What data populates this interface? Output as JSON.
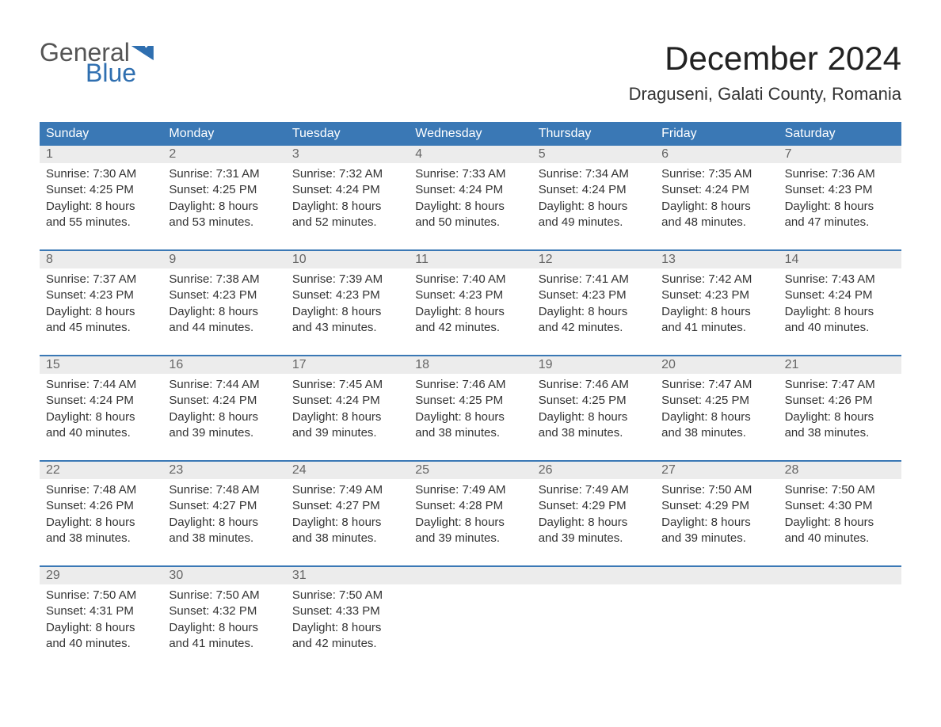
{
  "logo": {
    "top": "General",
    "bottom": "Blue"
  },
  "title": "December 2024",
  "location": "Draguseni, Galati County, Romania",
  "colors": {
    "header_bg": "#3a78b5",
    "header_text": "#ffffff",
    "daynum_bg": "#ececec",
    "daynum_text": "#666666",
    "body_text": "#333333",
    "week_border": "#3a78b5",
    "logo_gray": "#555555",
    "logo_blue": "#2f6fb0"
  },
  "dow": [
    "Sunday",
    "Monday",
    "Tuesday",
    "Wednesday",
    "Thursday",
    "Friday",
    "Saturday"
  ],
  "weeks": [
    [
      {
        "n": "1",
        "sr": "Sunrise: 7:30 AM",
        "ss": "Sunset: 4:25 PM",
        "d1": "Daylight: 8 hours",
        "d2": "and 55 minutes."
      },
      {
        "n": "2",
        "sr": "Sunrise: 7:31 AM",
        "ss": "Sunset: 4:25 PM",
        "d1": "Daylight: 8 hours",
        "d2": "and 53 minutes."
      },
      {
        "n": "3",
        "sr": "Sunrise: 7:32 AM",
        "ss": "Sunset: 4:24 PM",
        "d1": "Daylight: 8 hours",
        "d2": "and 52 minutes."
      },
      {
        "n": "4",
        "sr": "Sunrise: 7:33 AM",
        "ss": "Sunset: 4:24 PM",
        "d1": "Daylight: 8 hours",
        "d2": "and 50 minutes."
      },
      {
        "n": "5",
        "sr": "Sunrise: 7:34 AM",
        "ss": "Sunset: 4:24 PM",
        "d1": "Daylight: 8 hours",
        "d2": "and 49 minutes."
      },
      {
        "n": "6",
        "sr": "Sunrise: 7:35 AM",
        "ss": "Sunset: 4:24 PM",
        "d1": "Daylight: 8 hours",
        "d2": "and 48 minutes."
      },
      {
        "n": "7",
        "sr": "Sunrise: 7:36 AM",
        "ss": "Sunset: 4:23 PM",
        "d1": "Daylight: 8 hours",
        "d2": "and 47 minutes."
      }
    ],
    [
      {
        "n": "8",
        "sr": "Sunrise: 7:37 AM",
        "ss": "Sunset: 4:23 PM",
        "d1": "Daylight: 8 hours",
        "d2": "and 45 minutes."
      },
      {
        "n": "9",
        "sr": "Sunrise: 7:38 AM",
        "ss": "Sunset: 4:23 PM",
        "d1": "Daylight: 8 hours",
        "d2": "and 44 minutes."
      },
      {
        "n": "10",
        "sr": "Sunrise: 7:39 AM",
        "ss": "Sunset: 4:23 PM",
        "d1": "Daylight: 8 hours",
        "d2": "and 43 minutes."
      },
      {
        "n": "11",
        "sr": "Sunrise: 7:40 AM",
        "ss": "Sunset: 4:23 PM",
        "d1": "Daylight: 8 hours",
        "d2": "and 42 minutes."
      },
      {
        "n": "12",
        "sr": "Sunrise: 7:41 AM",
        "ss": "Sunset: 4:23 PM",
        "d1": "Daylight: 8 hours",
        "d2": "and 42 minutes."
      },
      {
        "n": "13",
        "sr": "Sunrise: 7:42 AM",
        "ss": "Sunset: 4:23 PM",
        "d1": "Daylight: 8 hours",
        "d2": "and 41 minutes."
      },
      {
        "n": "14",
        "sr": "Sunrise: 7:43 AM",
        "ss": "Sunset: 4:24 PM",
        "d1": "Daylight: 8 hours",
        "d2": "and 40 minutes."
      }
    ],
    [
      {
        "n": "15",
        "sr": "Sunrise: 7:44 AM",
        "ss": "Sunset: 4:24 PM",
        "d1": "Daylight: 8 hours",
        "d2": "and 40 minutes."
      },
      {
        "n": "16",
        "sr": "Sunrise: 7:44 AM",
        "ss": "Sunset: 4:24 PM",
        "d1": "Daylight: 8 hours",
        "d2": "and 39 minutes."
      },
      {
        "n": "17",
        "sr": "Sunrise: 7:45 AM",
        "ss": "Sunset: 4:24 PM",
        "d1": "Daylight: 8 hours",
        "d2": "and 39 minutes."
      },
      {
        "n": "18",
        "sr": "Sunrise: 7:46 AM",
        "ss": "Sunset: 4:25 PM",
        "d1": "Daylight: 8 hours",
        "d2": "and 38 minutes."
      },
      {
        "n": "19",
        "sr": "Sunrise: 7:46 AM",
        "ss": "Sunset: 4:25 PM",
        "d1": "Daylight: 8 hours",
        "d2": "and 38 minutes."
      },
      {
        "n": "20",
        "sr": "Sunrise: 7:47 AM",
        "ss": "Sunset: 4:25 PM",
        "d1": "Daylight: 8 hours",
        "d2": "and 38 minutes."
      },
      {
        "n": "21",
        "sr": "Sunrise: 7:47 AM",
        "ss": "Sunset: 4:26 PM",
        "d1": "Daylight: 8 hours",
        "d2": "and 38 minutes."
      }
    ],
    [
      {
        "n": "22",
        "sr": "Sunrise: 7:48 AM",
        "ss": "Sunset: 4:26 PM",
        "d1": "Daylight: 8 hours",
        "d2": "and 38 minutes."
      },
      {
        "n": "23",
        "sr": "Sunrise: 7:48 AM",
        "ss": "Sunset: 4:27 PM",
        "d1": "Daylight: 8 hours",
        "d2": "and 38 minutes."
      },
      {
        "n": "24",
        "sr": "Sunrise: 7:49 AM",
        "ss": "Sunset: 4:27 PM",
        "d1": "Daylight: 8 hours",
        "d2": "and 38 minutes."
      },
      {
        "n": "25",
        "sr": "Sunrise: 7:49 AM",
        "ss": "Sunset: 4:28 PM",
        "d1": "Daylight: 8 hours",
        "d2": "and 39 minutes."
      },
      {
        "n": "26",
        "sr": "Sunrise: 7:49 AM",
        "ss": "Sunset: 4:29 PM",
        "d1": "Daylight: 8 hours",
        "d2": "and 39 minutes."
      },
      {
        "n": "27",
        "sr": "Sunrise: 7:50 AM",
        "ss": "Sunset: 4:29 PM",
        "d1": "Daylight: 8 hours",
        "d2": "and 39 minutes."
      },
      {
        "n": "28",
        "sr": "Sunrise: 7:50 AM",
        "ss": "Sunset: 4:30 PM",
        "d1": "Daylight: 8 hours",
        "d2": "and 40 minutes."
      }
    ],
    [
      {
        "n": "29",
        "sr": "Sunrise: 7:50 AM",
        "ss": "Sunset: 4:31 PM",
        "d1": "Daylight: 8 hours",
        "d2": "and 40 minutes."
      },
      {
        "n": "30",
        "sr": "Sunrise: 7:50 AM",
        "ss": "Sunset: 4:32 PM",
        "d1": "Daylight: 8 hours",
        "d2": "and 41 minutes."
      },
      {
        "n": "31",
        "sr": "Sunrise: 7:50 AM",
        "ss": "Sunset: 4:33 PM",
        "d1": "Daylight: 8 hours",
        "d2": "and 42 minutes."
      },
      null,
      null,
      null,
      null
    ]
  ]
}
